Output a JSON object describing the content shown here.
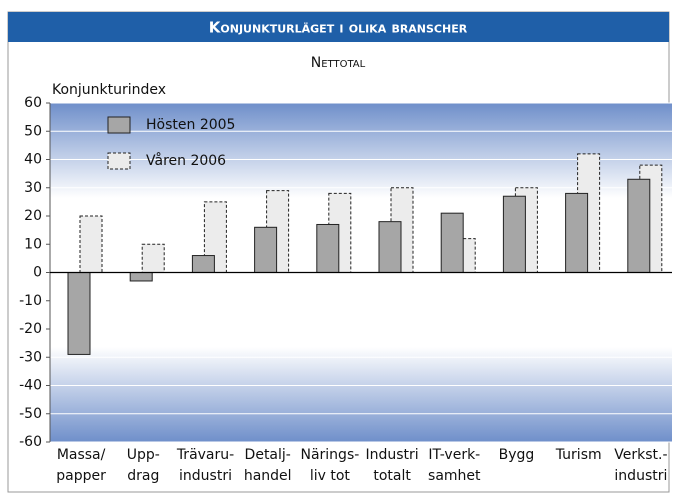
{
  "chart_data": {
    "type": "bar",
    "title": "Konjunkturläget i olika branscher",
    "subtitle": "Nettotal",
    "y_label": "Konjunkturindex",
    "categories": [
      [
        "Massa/",
        "papper"
      ],
      [
        "Upp-",
        "drag"
      ],
      [
        "Trävaru-",
        "industri"
      ],
      [
        "Detalj-",
        "handel"
      ],
      [
        "Närings-",
        "liv tot"
      ],
      [
        "Industri",
        "totalt"
      ],
      [
        "IT-verk-",
        "samhet"
      ],
      [
        "Bygg"
      ],
      [
        "Turism"
      ],
      [
        "Verkst.-",
        "industri"
      ]
    ],
    "series": [
      {
        "name": "Hösten 2005",
        "color": "#a6a6a6",
        "values": [
          -29,
          -3,
          6,
          16,
          17,
          18,
          21,
          27,
          28,
          33
        ]
      },
      {
        "name": "Våren 2006",
        "color": "#ececec",
        "values": [
          20,
          10,
          25,
          29,
          28,
          30,
          12,
          30,
          42,
          38
        ]
      }
    ],
    "ylim": [
      -60,
      60
    ],
    "yticks": [
      -60,
      -50,
      -40,
      -30,
      -20,
      -10,
      0,
      10,
      20,
      30,
      40,
      50,
      60
    ],
    "grid": true,
    "legend": "upper left"
  }
}
